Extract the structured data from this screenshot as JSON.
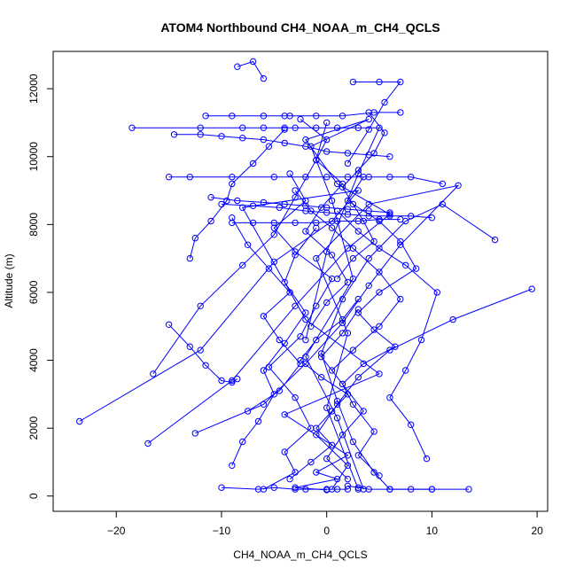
{
  "chart_data": {
    "type": "line",
    "title": "ATOM4 Northbound CH4_NOAA_m_CH4_QCLS",
    "xlabel": "CH4_NOAA_m_CH4_QCLS",
    "ylabel": "Altitude (m)",
    "xlim": [
      -26,
      21
    ],
    "ylim": [
      -450,
      13100
    ],
    "x_ticks": [
      -20,
      -10,
      0,
      10,
      20
    ],
    "y_ticks": [
      0,
      2000,
      4000,
      6000,
      8000,
      10000,
      12000
    ],
    "x_tick_labels": [
      "−20",
      "−10",
      "0",
      "10",
      "20"
    ],
    "y_tick_labels": [
      "0",
      "2000",
      "4000",
      "6000",
      "8000",
      "10000",
      "12000"
    ],
    "series_color": "#0000FF",
    "marker": "open-circle",
    "grid": false,
    "legend": "none",
    "series": [
      {
        "x": [
          -23.5,
          -12.0,
          -5.0,
          0.5,
          3.0,
          -8.0,
          -2.0,
          5.0,
          -4.0,
          2.0,
          -1.0,
          1.0,
          -3.0,
          0.0
        ],
        "y": [
          2200,
          4300,
          6900,
          8100,
          9000,
          8500,
          5200,
          3600,
          2400,
          1200,
          700,
          500,
          250,
          180
        ]
      },
      {
        "x": [
          -17.0,
          -9.0,
          -3.0,
          2.0,
          6.0,
          1.0,
          -2.0,
          4.0,
          -1.5,
          0.5,
          2.5,
          -2.0,
          1.0,
          3.5
        ],
        "y": [
          1550,
          3400,
          5600,
          7300,
          8300,
          9200,
          10500,
          11100,
          10300,
          8700,
          6400,
          4100,
          2300,
          200
        ]
      },
      {
        "x": [
          -12.5,
          -6.0,
          -2.0,
          1.5,
          4.0,
          7.0,
          12.5,
          4.0,
          -1.0,
          2.0,
          0.0,
          3.0
        ],
        "y": [
          1850,
          2700,
          3900,
          5100,
          6200,
          7400,
          9150,
          8600,
          7000,
          4800,
          2600,
          200
        ]
      },
      {
        "x": [
          -18.5,
          -12.0,
          -8.0,
          -6.0,
          -4.0,
          -3.0,
          -1.0,
          1.0,
          3.0,
          5.0,
          3.0,
          0.0,
          -2.0
        ],
        "y": [
          10850,
          10850,
          10850,
          10850,
          10850,
          10850,
          10850,
          10850,
          10850,
          10850,
          9500,
          7200,
          4600
        ]
      },
      {
        "x": [
          -15.0,
          -13.0,
          -9.0,
          -5.0,
          -2.0,
          0.0,
          2.0,
          4.0,
          6.0,
          8.0,
          11.0
        ],
        "y": [
          9400,
          9400,
          9400,
          9400,
          9400,
          9400,
          9400,
          9400,
          9400,
          9400,
          9200
        ]
      },
      {
        "x": [
          -11.5,
          -9.0,
          -6.0,
          -4.0,
          -3.5,
          -1.0,
          1.5,
          4.5,
          7.0
        ],
        "y": [
          11200,
          11200,
          11200,
          11200,
          11200,
          11200,
          11200,
          11300,
          11300
        ]
      },
      {
        "x": [
          -14.5,
          -12.0,
          -10.0,
          -8.0,
          -6.0,
          -4.0,
          -2.0,
          0.0,
          2.0,
          4.0,
          6.0
        ],
        "y": [
          10650,
          10650,
          10600,
          10550,
          10500,
          10400,
          10300,
          10150,
          10100,
          10050,
          10000
        ]
      },
      {
        "x": [
          -8.5,
          -7.0,
          -6.0
        ],
        "y": [
          12650,
          12800,
          12300
        ]
      },
      {
        "x": [
          2.5,
          5.0,
          7.0,
          5.5,
          4.0,
          2.0
        ],
        "y": [
          12200,
          12200,
          12200,
          11600,
          10800,
          9800
        ]
      },
      {
        "x": [
          -10.0,
          -7.0,
          -4.5,
          -2.0,
          0.0,
          2.0,
          4.0,
          6.0,
          8.0,
          10.0
        ],
        "y": [
          8600,
          8550,
          8500,
          8400,
          8350,
          8300,
          8250,
          8250,
          8250,
          8200
        ]
      },
      {
        "x": [
          -11.0,
          -8.5,
          -6.0,
          -4.0,
          -2.0,
          0.0,
          2.0,
          4.0,
          6.0
        ],
        "y": [
          8800,
          8700,
          8650,
          8600,
          8550,
          8500,
          8450,
          8400,
          8350
        ]
      },
      {
        "x": [
          -9.0,
          -7.0,
          -5.0,
          -3.0,
          -1.0,
          1.0,
          3.0,
          5.0,
          7.0
        ],
        "y": [
          8050,
          8050,
          8050,
          8050,
          8050,
          8100,
          8100,
          8150,
          8150
        ]
      },
      {
        "x": [
          19.5,
          12.0,
          6.0,
          3.0,
          1.0,
          -1.0,
          2.0,
          0.5
        ],
        "y": [
          6100,
          5200,
          4300,
          3500,
          2700,
          1800,
          900,
          200
        ]
      },
      {
        "x": [
          16.0,
          11.0,
          7.5,
          4.0,
          1.5,
          -0.5,
          1.0,
          2.5,
          4.5,
          6.0,
          10.0
        ],
        "y": [
          7550,
          8600,
          8100,
          7000,
          5800,
          4200,
          2800,
          1600,
          700,
          200,
          200
        ]
      },
      {
        "x": [
          -15.0,
          -13.0,
          -11.5,
          -10.0,
          -9.0,
          -8.5
        ],
        "y": [
          5050,
          4400,
          3850,
          3400,
          3350,
          3450
        ]
      },
      {
        "x": [
          -16.5,
          -12.0,
          -8.0,
          -5.0,
          -3.0,
          -1.0,
          0.0
        ],
        "y": [
          3600,
          5600,
          6800,
          7700,
          8800,
          9900,
          11000
        ]
      },
      {
        "x": [
          -10.0,
          -6.5,
          -5.0,
          -3.0,
          -2.0,
          0.0,
          1.0,
          2.0
        ],
        "y": [
          250,
          200,
          250,
          200,
          200,
          200,
          200,
          200
        ]
      },
      {
        "x": [
          13.5,
          10.0,
          8.0,
          6.0,
          4.0,
          3.0,
          2.0
        ],
        "y": [
          200,
          200,
          200,
          200,
          200,
          250,
          300
        ]
      },
      {
        "x": [
          -6.0,
          -3.0,
          -4.0,
          -1.5,
          -3.0,
          -5.5,
          -2.5,
          -1.0,
          0.5,
          -3.0,
          -5.0,
          -2.0,
          -3.5
        ],
        "y": [
          200,
          700,
          1300,
          2000,
          2900,
          3800,
          4700,
          5600,
          6400,
          7200,
          7900,
          8700,
          9500
        ]
      },
      {
        "x": [
          5.0,
          3.0,
          4.5,
          2.5,
          1.5,
          3.5,
          6.5,
          4.5,
          3.0,
          5.0,
          8.5,
          7.0,
          5.0,
          2.0,
          3.5
        ],
        "y": [
          600,
          1200,
          1900,
          2700,
          3300,
          3900,
          4400,
          4900,
          5400,
          6000,
          6700,
          7500,
          8100,
          8700,
          9400
        ]
      },
      {
        "x": [
          9.5,
          8.0,
          6.0,
          7.5,
          9.0,
          10.5,
          7.5,
          5.0,
          3.0,
          1.0
        ],
        "y": [
          1100,
          2100,
          2900,
          3700,
          4600,
          6000,
          6800,
          7300,
          7800,
          8400
        ]
      },
      {
        "x": [
          -9.0,
          -8.0,
          -6.5,
          -5.0,
          -6.0,
          -4.0,
          -2.0,
          -4.0,
          -3.0,
          -1.0
        ],
        "y": [
          900,
          1600,
          2200,
          3000,
          3700,
          4500,
          5400,
          6300,
          7100,
          7900
        ]
      },
      {
        "x": [
          -13.0,
          -12.5,
          -11.0,
          -9.5,
          -9.0,
          -7.0,
          -5.5,
          -4.0
        ],
        "y": [
          7000,
          7600,
          8100,
          8700,
          9200,
          9800,
          10300,
          10800
        ]
      },
      {
        "x": [
          4.0,
          5.5,
          4.5,
          3.0,
          1.5,
          2.5,
          3.5,
          4.5,
          2.5,
          1.0
        ],
        "y": [
          11300,
          10700,
          10100,
          9600,
          9100,
          8600,
          8100,
          7500,
          7000,
          6400
        ]
      },
      {
        "x": [
          -2.5,
          0.0,
          -1.0,
          1.5,
          -0.5,
          -2.0,
          0.5,
          2.0,
          0.0,
          -1.5
        ],
        "y": [
          11100,
          10500,
          9900,
          9200,
          8500,
          7800,
          7100,
          6300,
          5700,
          5000
        ]
      },
      {
        "x": [
          -3.5,
          -1.5,
          0.5,
          -1.0,
          0.5,
          2.0,
          -0.5,
          -2.5,
          -1.0,
          1.5,
          3.0
        ],
        "y": [
          500,
          1000,
          1500,
          2000,
          2500,
          3000,
          3500,
          4000,
          4600,
          5200,
          5800
        ]
      },
      {
        "x": [
          2.0,
          0.0,
          1.5,
          3.5,
          1.5,
          -0.5,
          1.5,
          3.0
        ],
        "y": [
          500,
          1100,
          1800,
          2500,
          3300,
          4100,
          4800,
          5500
        ]
      },
      {
        "x": [
          -7.5,
          -4.5,
          -2.5,
          -4.5,
          -6.0,
          -3.5,
          -5.5,
          -7.5,
          -9.0
        ],
        "y": [
          2500,
          3100,
          3900,
          4600,
          5300,
          6000,
          6700,
          7400,
          8200
        ]
      },
      {
        "x": [
          0.5,
          2.5,
          5.0,
          7.0,
          5.0,
          2.5,
          0.5,
          -1.5,
          -3.0
        ],
        "y": [
          3700,
          4300,
          5000,
          5800,
          6600,
          7300,
          7900,
          8400,
          9000
        ]
      }
    ]
  }
}
